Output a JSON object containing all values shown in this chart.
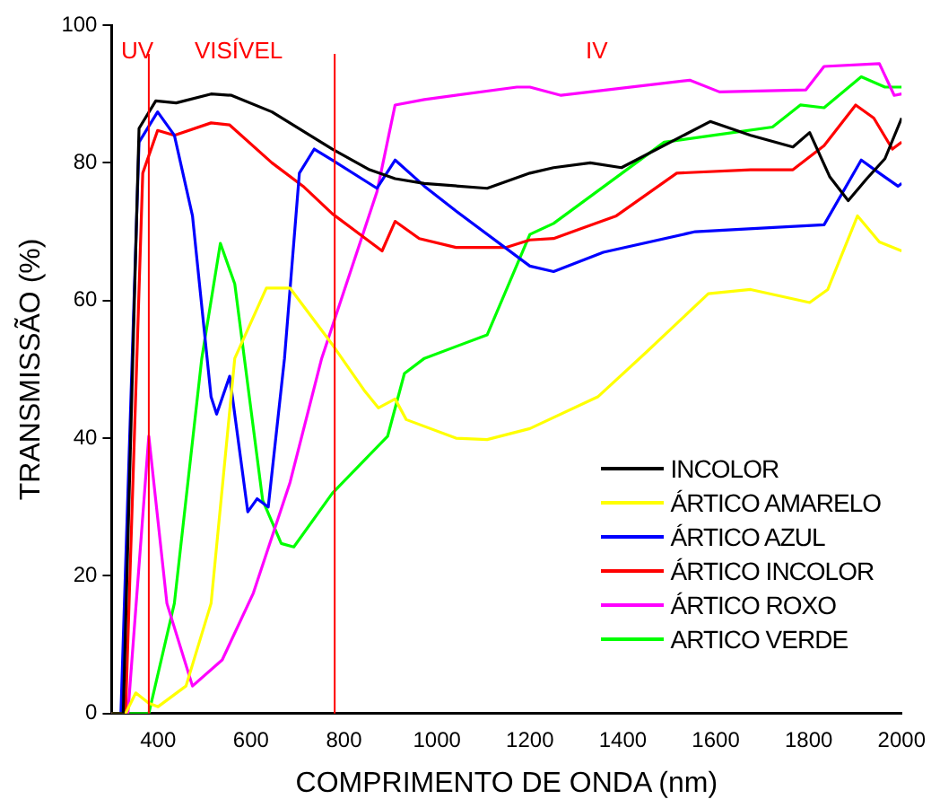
{
  "chart_data": {
    "type": "line",
    "xlabel": "COMPRIMENTO DE ONDA (nm)",
    "ylabel": "TRANSMISSÃO (%)",
    "xlim": [
      300,
      2000
    ],
    "xticks": [
      400,
      600,
      800,
      1000,
      1200,
      1400,
      1600,
      1800,
      2000
    ],
    "ylim": [
      0,
      100
    ],
    "yticks": [
      0,
      20,
      40,
      60,
      80,
      100
    ],
    "grid": false,
    "legend": "bottom right",
    "marker": "none",
    "line_style": "solid",
    "ref_lines": [
      {
        "axis": "x",
        "value": 380,
        "color": "#ff0000"
      },
      {
        "axis": "x",
        "value": 780,
        "color": "#ff0000"
      }
    ],
    "annotations": [
      "UV",
      "VISÍVEL",
      "IV"
    ],
    "series": [
      {
        "name": "INCOLOR",
        "color": "#000000",
        "x": [
          300,
          325,
          359,
          395,
          439,
          514,
          558,
          645,
          775,
          855,
          910,
          973,
          1108,
          1200,
          1251,
          1330,
          1397,
          1588,
          1675,
          1766,
          1802,
          1845,
          1885,
          1925,
          1964,
          2000
        ],
        "values": [
          0,
          0,
          85,
          89,
          88.7,
          90,
          89.8,
          87.4,
          82,
          79,
          77.7,
          77,
          76.3,
          78.5,
          79.3,
          80,
          79.3,
          86,
          84,
          82.3,
          84.4,
          78,
          74.5,
          77.7,
          80.6,
          86.5
        ]
      },
      {
        "name": "ÁRTICO AMARELO",
        "color": "#ffff00",
        "x": [
          300,
          330,
          352,
          380,
          400,
          460,
          514,
          565,
          633,
          684,
          776,
          843,
          874,
          910,
          934,
          1041,
          1108,
          1200,
          1346,
          1449,
          1584,
          1675,
          1802,
          1841,
          1905,
          1952,
          2000
        ],
        "values": [
          0,
          0,
          3,
          1.5,
          1,
          4,
          16,
          51.6,
          61.8,
          61.8,
          53.5,
          47,
          44.4,
          45.7,
          42.7,
          40,
          39.8,
          41.4,
          46,
          52.4,
          61,
          61.6,
          59.7,
          61.6,
          72.3,
          68.5,
          67.2
        ]
      },
      {
        "name": "ÁRTICO AZUL",
        "color": "#0000ff",
        "x": [
          300,
          320,
          359,
          399,
          435,
          474,
          514,
          526,
          554,
          593,
          613,
          637,
          672,
          704,
          736,
          775,
          871,
          910,
          973,
          1041,
          1200,
          1251,
          1358,
          1556,
          1833,
          1913,
          1952,
          1992,
          2000
        ],
        "values": [
          0,
          0,
          83,
          87.4,
          84,
          72.3,
          46,
          43.5,
          49,
          29.3,
          31.2,
          30,
          51.6,
          78.5,
          82,
          80.4,
          76.3,
          80.4,
          76.6,
          73,
          65,
          64.2,
          67,
          70,
          71,
          80.4,
          78.5,
          76.6,
          77
        ]
      },
      {
        "name": "ÁRTICO INCOLOR",
        "color": "#ff0000",
        "x": [
          300,
          330,
          367,
          399,
          435,
          514,
          554,
          645,
          712,
          775,
          882,
          910,
          962,
          1041,
          1148,
          1200,
          1251,
          1386,
          1516,
          1675,
          1766,
          1833,
          1901,
          1940,
          1980,
          2000
        ],
        "values": [
          0,
          0,
          78.5,
          84.7,
          84,
          85.8,
          85.5,
          80,
          76.6,
          72.6,
          67.2,
          71.5,
          69,
          67.7,
          67.7,
          68.8,
          69,
          72.3,
          78.5,
          79,
          79,
          82.5,
          88.4,
          86.5,
          82,
          83
        ]
      },
      {
        "name": "ÁRTICO ROXO",
        "color": "#ff00ff",
        "x": [
          300,
          335,
          380,
          419,
          474,
          538,
          605,
          684,
          752,
          871,
          910,
          973,
          1172,
          1200,
          1267,
          1544,
          1608,
          1794,
          1833,
          1952,
          1984,
          2000
        ],
        "values": [
          0,
          0,
          40.3,
          16,
          4,
          7.8,
          17.5,
          33.6,
          51.6,
          75.8,
          88.4,
          89.2,
          91,
          91,
          89.8,
          92,
          90.3,
          90.6,
          94,
          94.4,
          89.8,
          90
        ]
      },
      {
        "name": "ARTICO VERDE",
        "color": "#00ff00",
        "x": [
          300,
          380,
          435,
          494,
          534,
          565,
          625,
          665,
          692,
          775,
          894,
          930,
          973,
          1108,
          1200,
          1251,
          1489,
          1596,
          1722,
          1782,
          1833,
          1913,
          1964,
          2000
        ],
        "values": [
          0,
          0,
          16,
          51.6,
          68.3,
          62.4,
          31,
          24.7,
          24.2,
          32,
          40.3,
          49.4,
          51.6,
          55,
          69.6,
          71.2,
          83,
          84,
          85.2,
          88.4,
          88,
          92.5,
          91,
          91
        ]
      }
    ]
  }
}
